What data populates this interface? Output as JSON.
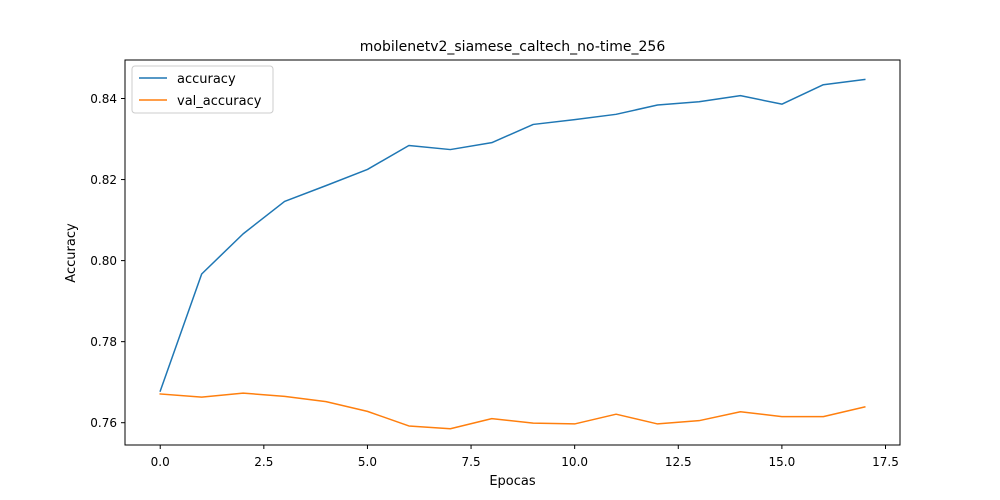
{
  "chart_data": {
    "type": "line",
    "title": "mobilenetv2_siamese_caltech_no-time_256",
    "xlabel": "Epocas",
    "ylabel": "Accuracy",
    "xlim": [
      -0.85,
      17.85
    ],
    "ylim": [
      0.7545,
      0.8495
    ],
    "xticks": [
      0.0,
      2.5,
      5.0,
      7.5,
      10.0,
      12.5,
      15.0,
      17.5
    ],
    "xtick_labels": [
      "0.0",
      "2.5",
      "5.0",
      "7.5",
      "10.0",
      "12.5",
      "15.0",
      "17.5"
    ],
    "yticks": [
      0.76,
      0.78,
      0.8,
      0.82,
      0.84
    ],
    "ytick_labels": [
      "0.76",
      "0.78",
      "0.80",
      "0.82",
      "0.84"
    ],
    "grid": false,
    "legend_position": "top-left",
    "x": [
      0,
      1,
      2,
      3,
      4,
      5,
      6,
      7,
      8,
      9,
      10,
      11,
      12,
      13,
      14,
      15,
      16,
      17
    ],
    "series": [
      {
        "name": "accuracy",
        "color": "#1f77b4",
        "values": [
          0.7678,
          0.7967,
          0.8066,
          0.8146,
          0.8185,
          0.8225,
          0.8284,
          0.8274,
          0.8291,
          0.8336,
          0.8348,
          0.8361,
          0.8384,
          0.8392,
          0.8407,
          0.8386,
          0.8434,
          0.8447
        ]
      },
      {
        "name": "val_accuracy",
        "color": "#ff7f0e",
        "values": [
          0.7671,
          0.7663,
          0.7673,
          0.7665,
          0.7652,
          0.7628,
          0.7592,
          0.7585,
          0.761,
          0.7599,
          0.7597,
          0.7621,
          0.7597,
          0.7605,
          0.7627,
          0.7615,
          0.7615,
          0.7639
        ]
      }
    ]
  }
}
